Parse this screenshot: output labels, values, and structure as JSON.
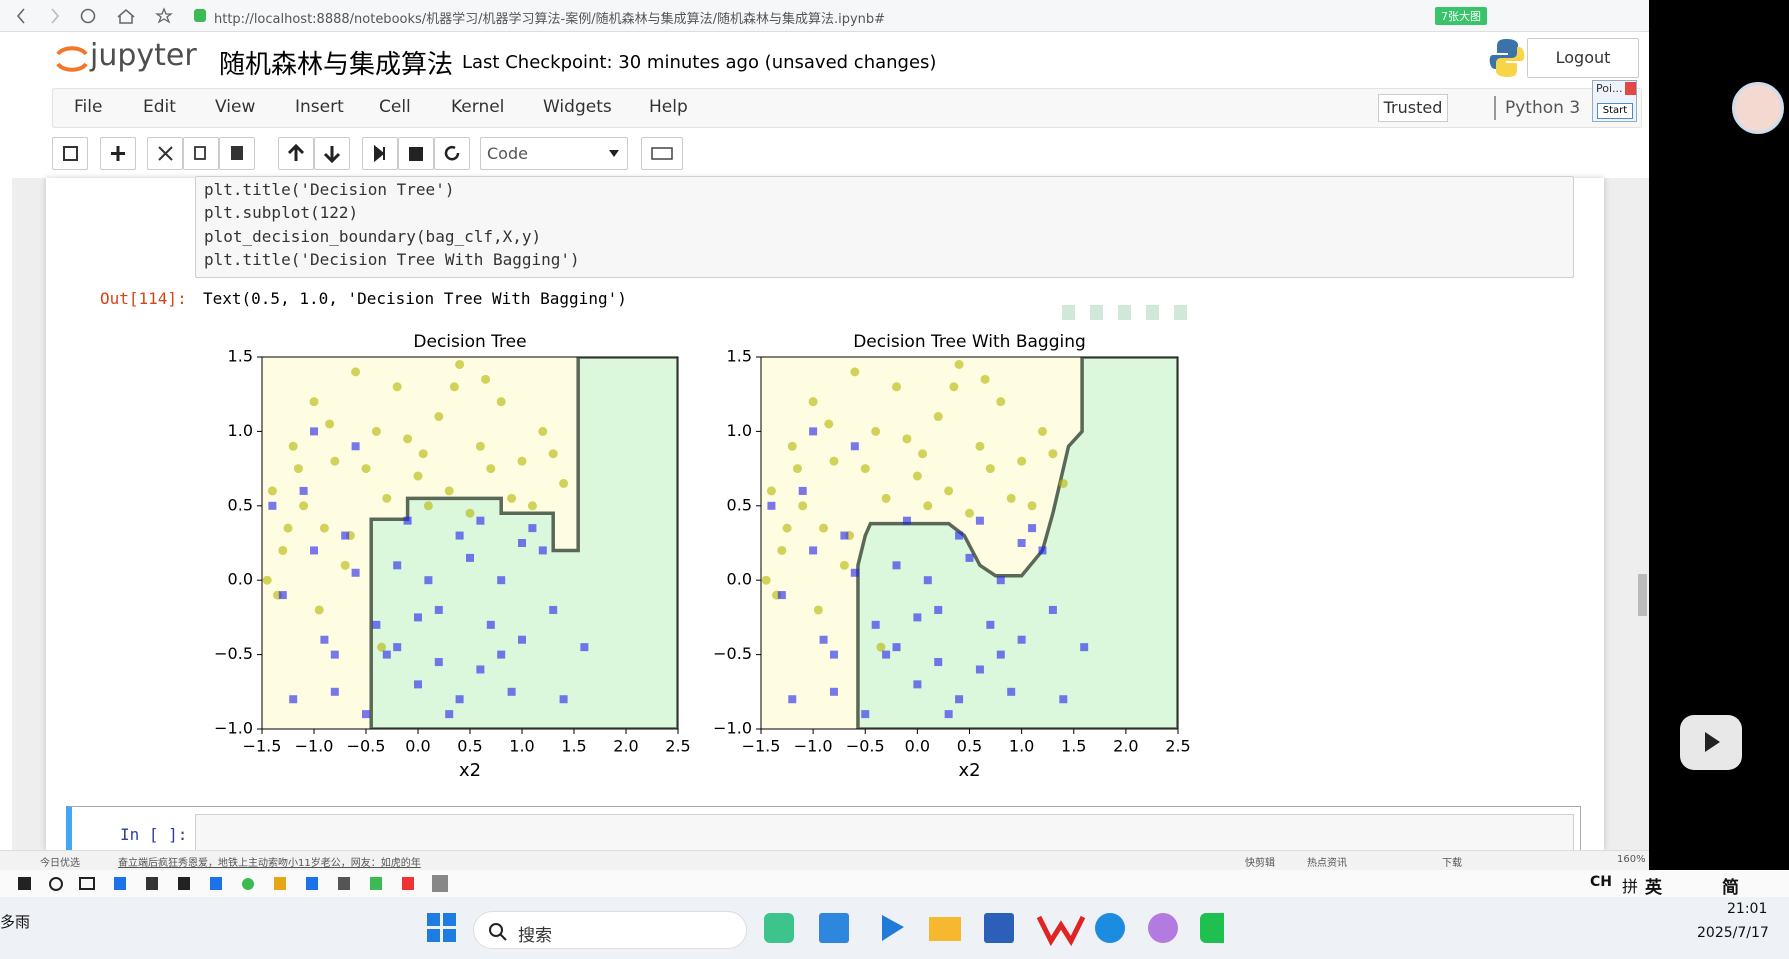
{
  "browser": {
    "url": "http://localhost:8888/notebooks/机器学习/机器学习算法-案例/随机森林与集成算法/随机森林与集成算法.ipynb#",
    "badge": "7张大图"
  },
  "header": {
    "logo": "jupyter",
    "notebook_name": "随机森林与集成算法",
    "checkpoint": "Last Checkpoint: 30 minutes ago (unsaved changes)",
    "logout": "Logout"
  },
  "menu": [
    "File",
    "Edit",
    "View",
    "Insert",
    "Cell",
    "Kernel",
    "Widgets",
    "Help"
  ],
  "kernel_status": {
    "trusted": "Trusted",
    "kernel": "Python 3"
  },
  "toolbar": {
    "cell_type": "Code"
  },
  "popup": {
    "title": "Poi...",
    "button": "Start"
  },
  "cell": {
    "code": [
      "plt.title('Decision Tree')",
      "plt.subplot(122)",
      "plot_decision_boundary(bag_clf,X,y)",
      "plt.title('Decision Tree With Bagging')"
    ],
    "out_prompt": "Out[114]:",
    "out_text": "Text(0.5, 1.0, 'Decision Tree With Bagging')"
  },
  "chart_data": [
    {
      "type": "scatter",
      "title": "Decision Tree",
      "xlabel": "x2",
      "xlim": [
        -1.5,
        2.5
      ],
      "ylim": [
        -1,
        1.5
      ],
      "xticks": [
        {
          "value": -1.5,
          "label": "−1.5"
        },
        {
          "value": -1,
          "label": "−1.0"
        },
        {
          "value": -0.5,
          "label": "−0.5"
        },
        {
          "value": 0,
          "label": "0.0"
        },
        0.5,
        {
          "value": 1,
          "label": "1.0"
        },
        1.5,
        {
          "value": 2,
          "label": "2.0"
        },
        2.5
      ],
      "yticks": [
        {
          "value": -1,
          "label": "−1.0"
        },
        {
          "value": -0.5,
          "label": "−0.5"
        },
        {
          "value": 0,
          "label": "0.0"
        },
        0.5,
        {
          "value": 1,
          "label": "1.0"
        },
        1.5
      ],
      "region_colors": [
        "#fefde2",
        "#dcf8dc"
      ],
      "boundary_color": "#3f4f3f",
      "boundary": {
        "x": [
          -0.45,
          -0.45,
          -0.1,
          -0.1,
          0.8,
          0.8,
          1.3,
          1.3,
          1.54,
          1.54,
          2.5,
          2.5
        ],
        "y": [
          -1,
          0.41,
          0.41,
          0.55,
          0.55,
          0.45,
          0.45,
          0.2,
          0.2,
          1.5,
          1.5,
          -1
        ]
      },
      "series": [
        {
          "color": "#b4b400",
          "marker": "o",
          "x": [
            -1.4,
            -1.2,
            -1.0,
            -0.8,
            -0.6,
            -0.4,
            -0.2,
            0.0,
            0.2,
            0.4,
            0.6,
            0.8,
            1.0,
            1.2,
            1.4,
            -1.3,
            -1.1,
            -0.9,
            -0.7,
            -0.5,
            -0.3,
            -0.1,
            0.1,
            0.3,
            0.5,
            0.7,
            0.9,
            1.1,
            1.3,
            -1.35,
            -1.25,
            -0.95,
            -0.65,
            -0.35,
            0.05,
            0.35,
            0.65,
            -1.45,
            -1.15,
            -0.85
          ],
          "y": [
            0.6,
            0.9,
            1.2,
            0.8,
            1.4,
            1.0,
            1.3,
            0.7,
            1.1,
            1.45,
            0.9,
            1.2,
            0.8,
            1.0,
            0.65,
            0.2,
            0.5,
            0.35,
            0.1,
            0.75,
            0.55,
            0.95,
            0.5,
            0.6,
            0.45,
            0.75,
            0.55,
            0.5,
            0.85,
            -0.1,
            0.35,
            -0.2,
            0.3,
            -0.45,
            0.85,
            1.3,
            1.35,
            0.0,
            0.75,
            1.05
          ]
        },
        {
          "color": "#2020ee",
          "marker": "s",
          "x": [
            -1.4,
            -1.2,
            -1.0,
            -0.8,
            -0.6,
            -0.4,
            -0.2,
            0.0,
            0.2,
            0.4,
            0.6,
            0.8,
            1.0,
            1.2,
            1.4,
            -1.3,
            -1.1,
            -0.9,
            -0.7,
            -0.5,
            -0.3,
            -0.1,
            0.1,
            0.3,
            0.5,
            0.7,
            0.9,
            1.1,
            1.3,
            -1.0,
            -0.6,
            -0.2,
            0.2,
            0.6,
            1.0,
            -0.8,
            0.0,
            0.4,
            0.8,
            1.6
          ],
          "y": [
            0.5,
            -0.8,
            0.2,
            -0.5,
            0.9,
            -0.3,
            0.1,
            -0.7,
            -0.2,
            0.3,
            -0.6,
            0.0,
            -0.4,
            0.2,
            -0.8,
            -0.1,
            0.6,
            -0.4,
            0.3,
            -0.9,
            -0.5,
            0.4,
            0.0,
            -0.9,
            0.15,
            -0.3,
            -0.75,
            0.35,
            -0.2,
            1.0,
            0.05,
            -0.45,
            -0.55,
            0.4,
            0.25,
            -0.75,
            -0.25,
            -0.8,
            -0.5,
            -0.45
          ]
        }
      ]
    },
    {
      "type": "scatter",
      "title": "Decision Tree With Bagging",
      "xlabel": "x2",
      "xlim": [
        -1.5,
        2.5
      ],
      "ylim": [
        -1,
        1.5
      ],
      "xticks": [
        {
          "value": -1.5,
          "label": "−1.5"
        },
        {
          "value": -1,
          "label": "−1.0"
        },
        {
          "value": -0.5,
          "label": "−0.5"
        },
        {
          "value": 0,
          "label": "0.0"
        },
        0.5,
        {
          "value": 1,
          "label": "1.0"
        },
        1.5,
        {
          "value": 2,
          "label": "2.0"
        },
        2.5
      ],
      "yticks": [
        {
          "value": -1,
          "label": "−1.0"
        },
        {
          "value": -0.5,
          "label": "−0.5"
        },
        {
          "value": 0,
          "label": "0.0"
        },
        0.5,
        {
          "value": 1,
          "label": "1.0"
        },
        1.5
      ],
      "region_colors": [
        "#fefde2",
        "#dcf8dc"
      ],
      "boundary_color": "#3f4f3f",
      "boundary": {
        "x": [
          -0.57,
          -0.57,
          -0.5,
          -0.45,
          0.3,
          0.45,
          0.6,
          0.75,
          1.0,
          1.2,
          1.3,
          1.45,
          1.58,
          1.58,
          2.5,
          2.5
        ],
        "y": [
          -1,
          0.1,
          0.3,
          0.38,
          0.38,
          0.3,
          0.1,
          0.03,
          0.03,
          0.2,
          0.45,
          0.9,
          1.0,
          1.5,
          1.5,
          -1
        ]
      },
      "series": [
        {
          "color": "#b4b400",
          "marker": "o",
          "x": [
            -1.4,
            -1.2,
            -1.0,
            -0.8,
            -0.6,
            -0.4,
            -0.2,
            0.0,
            0.2,
            0.4,
            0.6,
            0.8,
            1.0,
            1.2,
            1.4,
            -1.3,
            -1.1,
            -0.9,
            -0.7,
            -0.5,
            -0.3,
            -0.1,
            0.1,
            0.3,
            0.5,
            0.7,
            0.9,
            1.1,
            1.3,
            -1.35,
            -1.25,
            -0.95,
            -0.65,
            -0.35,
            0.05,
            0.35,
            0.65,
            -1.45,
            -1.15,
            -0.85
          ],
          "y": [
            0.6,
            0.9,
            1.2,
            0.8,
            1.4,
            1.0,
            1.3,
            0.7,
            1.1,
            1.45,
            0.9,
            1.2,
            0.8,
            1.0,
            0.65,
            0.2,
            0.5,
            0.35,
            0.1,
            0.75,
            0.55,
            0.95,
            0.5,
            0.6,
            0.45,
            0.75,
            0.55,
            0.5,
            0.85,
            -0.1,
            0.35,
            -0.2,
            0.3,
            -0.45,
            0.85,
            1.3,
            1.35,
            0.0,
            0.75,
            1.05
          ]
        },
        {
          "color": "#2020ee",
          "marker": "s",
          "x": [
            -1.4,
            -1.2,
            -1.0,
            -0.8,
            -0.6,
            -0.4,
            -0.2,
            0.0,
            0.2,
            0.4,
            0.6,
            0.8,
            1.0,
            1.2,
            1.4,
            -1.3,
            -1.1,
            -0.9,
            -0.7,
            -0.5,
            -0.3,
            -0.1,
            0.1,
            0.3,
            0.5,
            0.7,
            0.9,
            1.1,
            1.3,
            -1.0,
            -0.6,
            -0.2,
            0.2,
            0.6,
            1.0,
            -0.8,
            0.0,
            0.4,
            0.8,
            1.6
          ],
          "y": [
            0.5,
            -0.8,
            0.2,
            -0.5,
            0.9,
            -0.3,
            0.1,
            -0.7,
            -0.2,
            0.3,
            -0.6,
            0.0,
            -0.4,
            0.2,
            -0.8,
            -0.1,
            0.6,
            -0.4,
            0.3,
            -0.9,
            -0.5,
            0.4,
            0.0,
            -0.9,
            0.15,
            -0.3,
            -0.75,
            0.35,
            -0.2,
            1.0,
            0.05,
            -0.45,
            -0.55,
            0.4,
            0.25,
            -0.75,
            -0.25,
            -0.8,
            -0.5,
            -0.45
          ]
        }
      ]
    }
  ],
  "next_cell": {
    "prompt": "In [ ]:"
  },
  "statusbar": {
    "left": "今日优选",
    "news": "奋立端后疯狂秀恩爱，地铁上主动索吻小11岁老公，网友：如虎的年",
    "items": [
      "快剪辑",
      "热点资讯",
      "下载",
      "160%"
    ]
  },
  "tray_strip": [
    "CH",
    "拼",
    "英",
    "简"
  ],
  "taskbar": {
    "weather": "多雨",
    "search": "搜索",
    "time": "21:01",
    "date": "2025/7/17"
  }
}
